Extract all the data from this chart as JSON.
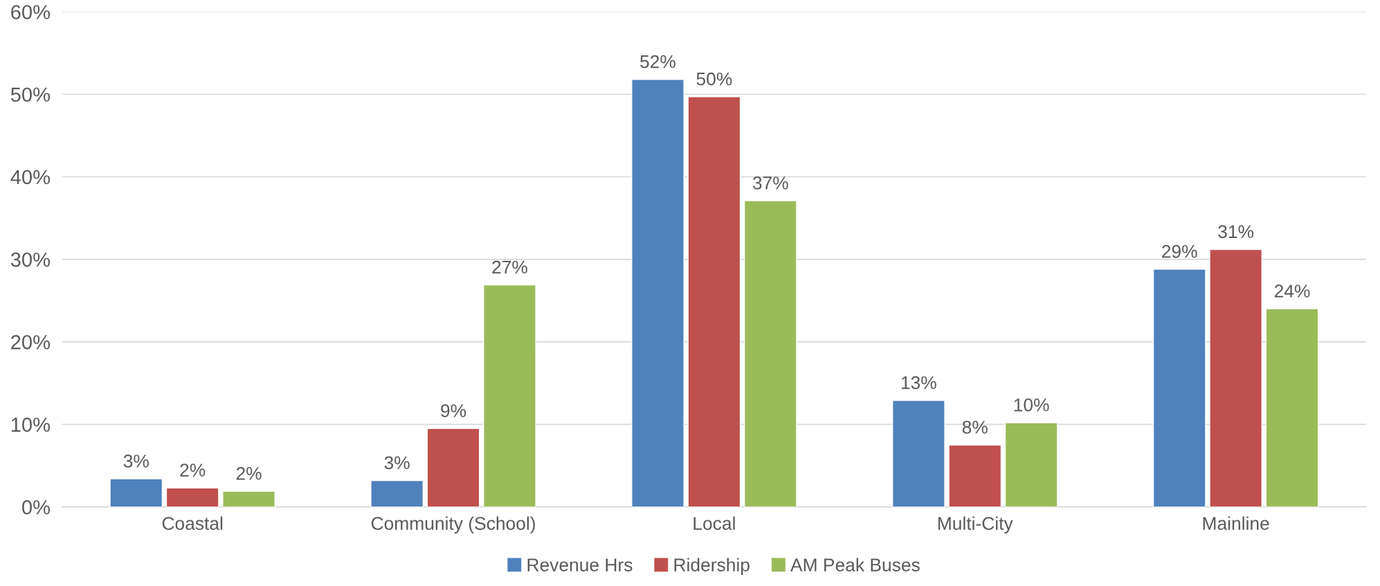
{
  "chart_data": {
    "type": "bar",
    "categories": [
      "Coastal",
      "Community (School)",
      "Local",
      "Multi-City",
      "Mainline"
    ],
    "series": [
      {
        "name": "Revenue Hrs",
        "color": "#4f81bd",
        "values": [
          3.4,
          3.2,
          51.8,
          12.9,
          28.8
        ],
        "value_labels": [
          "3%",
          "3%",
          "52%",
          "13%",
          "29%"
        ]
      },
      {
        "name": "Ridership",
        "color": "#c0504d",
        "values": [
          2.3,
          9.5,
          49.7,
          7.5,
          31.2
        ],
        "value_labels": [
          "2%",
          "9%",
          "50%",
          "8%",
          "31%"
        ]
      },
      {
        "name": "AM Peak Buses",
        "color": "#9bbb59",
        "values": [
          1.9,
          26.9,
          37.1,
          10.2,
          24.0
        ],
        "value_labels": [
          "2%",
          "27%",
          "37%",
          "10%",
          "24%"
        ]
      }
    ],
    "ylim": [
      0,
      60
    ],
    "yticks": [
      {
        "value": 0,
        "label": "0%"
      },
      {
        "value": 10,
        "label": "10%"
      },
      {
        "value": 20,
        "label": "20%"
      },
      {
        "value": 30,
        "label": "30%"
      },
      {
        "value": 40,
        "label": "40%"
      },
      {
        "value": 50,
        "label": "50%"
      },
      {
        "value": 60,
        "label": "60%"
      }
    ],
    "grid": "y",
    "legend": "bottom"
  }
}
